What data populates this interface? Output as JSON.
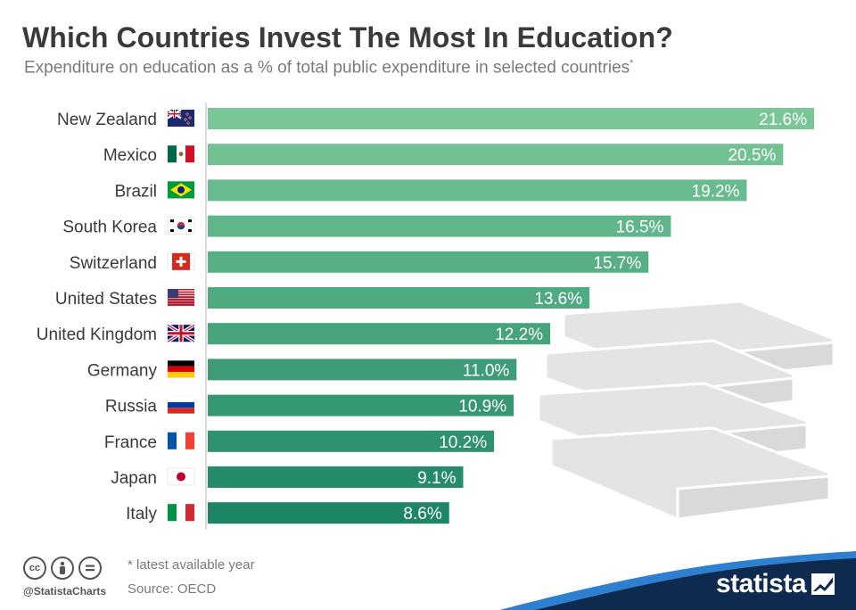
{
  "header": {
    "title": "Which Countries Invest The Most In Education?",
    "subtitle": "Expenditure on education as a % of total public expenditure in selected countries",
    "subtitle_mark": "*"
  },
  "chart_data": {
    "type": "bar",
    "orientation": "horizontal",
    "categories": [
      "New Zealand",
      "Mexico",
      "Brazil",
      "South Korea",
      "Switzerland",
      "United States",
      "United Kingdom",
      "Germany",
      "Russia",
      "France",
      "Japan",
      "Italy"
    ],
    "values": [
      21.6,
      20.5,
      19.2,
      16.5,
      15.7,
      13.6,
      12.2,
      11.0,
      10.9,
      10.2,
      9.1,
      8.6
    ],
    "value_labels": [
      "21.6%",
      "20.5%",
      "19.2%",
      "16.5%",
      "15.7%",
      "13.6%",
      "12.2%",
      "11.0%",
      "10.9%",
      "10.2%",
      "9.1%",
      "8.6%"
    ],
    "flags": [
      "flag-new-zealand",
      "flag-mexico",
      "flag-brazil",
      "flag-south-korea",
      "flag-switzerland",
      "flag-united-states",
      "flag-united-kingdom",
      "flag-germany",
      "flag-russia",
      "flag-france",
      "flag-japan",
      "flag-italy"
    ],
    "xlim": [
      0,
      21.6
    ],
    "bar_color_top": "#79c797",
    "bar_color_bottom": "#1d8566",
    "title": "Which Countries Invest The Most In Education?",
    "xlabel": "",
    "ylabel": "",
    "grid": false
  },
  "footer": {
    "note": "* latest available year",
    "source": "Source: OECD",
    "handle": "@StatistaCharts",
    "brand": "statista",
    "license_icons": [
      "cc-icon",
      "by-attribution-icon",
      "no-derivatives-icon"
    ]
  },
  "colors": {
    "title": "#3a3a3a",
    "subtitle": "#7a7a7a",
    "brand_dark": "#0e2a4e",
    "brand_light": "#2f7fd0",
    "books": "#e6e6e6"
  }
}
